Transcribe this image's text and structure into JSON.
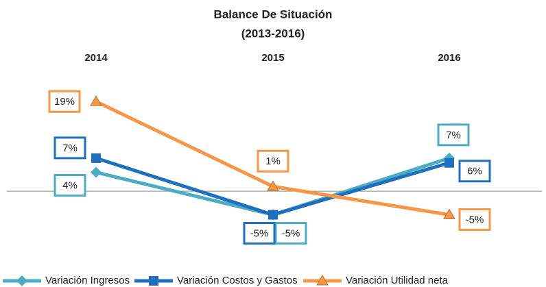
{
  "chart_data": {
    "type": "line",
    "title": "Balance De Situación",
    "subtitle": "(2013-2016)",
    "categories": [
      "2014",
      "2015",
      "2016"
    ],
    "series": [
      {
        "name": "Variación Ingresos",
        "color": "#4bacc6",
        "marker": "diamond",
        "values": [
          4,
          -5,
          7
        ],
        "value_labels": [
          "4%",
          "-5%",
          "7%"
        ]
      },
      {
        "name": "Variación Costos y Gastos",
        "color": "#1f6fbf",
        "marker": "square",
        "values": [
          7,
          -5,
          6
        ],
        "value_labels": [
          "7%",
          "-5%",
          "6%"
        ]
      },
      {
        "name": "Variación Utilidad neta",
        "color": "#f79646",
        "marker": "triangle",
        "values": [
          19,
          1,
          -5
        ],
        "value_labels": [
          "19%",
          "1%",
          "-5%"
        ]
      }
    ],
    "ylim": [
      -10,
      26
    ],
    "grid": false,
    "legend": "bottom"
  }
}
